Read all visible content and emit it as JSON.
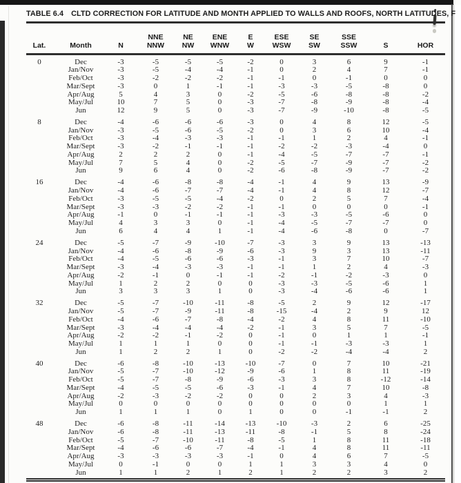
{
  "table": {
    "title_label": "TABLE 6.4",
    "title_text": "CLTD CORRECTION FOR LATITUDE AND MONTH APPLIED TO WALLS AND ROOFS, NORTH LATITUDES, F",
    "columns": [
      {
        "key": "lat",
        "line1": "",
        "line2": "Lat."
      },
      {
        "key": "month",
        "line1": "",
        "line2": "Month"
      },
      {
        "key": "n",
        "line1": "",
        "line2": "N"
      },
      {
        "key": "nne-nnw",
        "line1": "NNE",
        "line2": "NNW"
      },
      {
        "key": "ne-nw",
        "line1": "NE",
        "line2": "NW"
      },
      {
        "key": "ene-wnw",
        "line1": "ENE",
        "line2": "WNW"
      },
      {
        "key": "e-w",
        "line1": "E",
        "line2": "W"
      },
      {
        "key": "ese-wsw",
        "line1": "ESE",
        "line2": "WSW"
      },
      {
        "key": "se-sw",
        "line1": "SE",
        "line2": "SW"
      },
      {
        "key": "sse-ssw",
        "line1": "SSE",
        "line2": "SSW"
      },
      {
        "key": "s",
        "line1": "",
        "line2": "S"
      },
      {
        "key": "hor",
        "line1": "",
        "line2": "HOR"
      }
    ],
    "groups": [
      {
        "lat": "0",
        "rows": [
          {
            "month": "Dec",
            "values": [
              -3,
              -5,
              -5,
              -5,
              -2,
              0,
              3,
              6,
              9,
              -1
            ]
          },
          {
            "month": "Jan/Nov",
            "values": [
              -3,
              -5,
              -4,
              -4,
              -1,
              0,
              2,
              4,
              7,
              -1
            ]
          },
          {
            "month": "Feb/Oct",
            "values": [
              -3,
              -2,
              -2,
              -2,
              -1,
              -1,
              0,
              -1,
              0,
              0
            ]
          },
          {
            "month": "Mar/Sept",
            "values": [
              -3,
              0,
              1,
              -1,
              -1,
              -3,
              -3,
              -5,
              -8,
              0
            ]
          },
          {
            "month": "Apr/Aug",
            "values": [
              5,
              4,
              3,
              0,
              -2,
              -5,
              -6,
              -8,
              -8,
              -2
            ]
          },
          {
            "month": "May/Jul",
            "values": [
              10,
              7,
              5,
              0,
              -3,
              -7,
              -8,
              -9,
              -8,
              -4
            ]
          },
          {
            "month": "Jun",
            "values": [
              12,
              9,
              5,
              0,
              -3,
              -7,
              -9,
              -10,
              -8,
              -5
            ]
          }
        ]
      },
      {
        "lat": "8",
        "rows": [
          {
            "month": "Dec",
            "values": [
              -4,
              -6,
              -6,
              -6,
              -3,
              0,
              4,
              8,
              12,
              -5
            ]
          },
          {
            "month": "Jan/Nov",
            "values": [
              -3,
              -5,
              -6,
              -5,
              -2,
              0,
              3,
              6,
              10,
              -4
            ]
          },
          {
            "month": "Feb/Oct",
            "values": [
              -3,
              -4,
              -3,
              -3,
              -1,
              -1,
              1,
              2,
              4,
              -1
            ]
          },
          {
            "month": "Mar/Sept",
            "values": [
              -3,
              -2,
              -1,
              -1,
              -1,
              -2,
              -2,
              -3,
              -4,
              0
            ]
          },
          {
            "month": "Apr/Aug",
            "values": [
              2,
              2,
              2,
              0,
              -1,
              -4,
              -5,
              -7,
              -7,
              -1
            ]
          },
          {
            "month": "May/Jul",
            "values": [
              7,
              5,
              4,
              0,
              -2,
              -5,
              -7,
              -9,
              -7,
              -2
            ]
          },
          {
            "month": "Jun",
            "values": [
              9,
              6,
              4,
              0,
              -2,
              -6,
              -8,
              -9,
              -7,
              -2
            ]
          }
        ]
      },
      {
        "lat": "16",
        "rows": [
          {
            "month": "Dec",
            "values": [
              -4,
              -6,
              -8,
              -8,
              -4,
              -1,
              4,
              9,
              13,
              -9
            ]
          },
          {
            "month": "Jan/Nov",
            "values": [
              -4,
              -6,
              -7,
              -7,
              -4,
              -1,
              4,
              8,
              12,
              -7
            ]
          },
          {
            "month": "Feb/Oct",
            "values": [
              -3,
              -5,
              -5,
              -4,
              -2,
              0,
              2,
              5,
              7,
              -4
            ]
          },
          {
            "month": "Mar/Sept",
            "values": [
              -3,
              -3,
              -2,
              -2,
              -1,
              -1,
              0,
              0,
              0,
              -1
            ]
          },
          {
            "month": "Apr/Aug",
            "values": [
              -1,
              0,
              -1,
              -1,
              -1,
              -3,
              -3,
              -5,
              -6,
              0
            ]
          },
          {
            "month": "May/Jul",
            "values": [
              4,
              3,
              3,
              0,
              -1,
              -4,
              -5,
              -7,
              -7,
              0
            ]
          },
          {
            "month": "Jun",
            "values": [
              6,
              4,
              4,
              1,
              -1,
              -4,
              -6,
              -8,
              0,
              -7
            ]
          }
        ]
      },
      {
        "lat": "24",
        "rows": [
          {
            "month": "Dec",
            "values": [
              -5,
              -7,
              -9,
              -10,
              -7,
              -3,
              3,
              9,
              13,
              -13
            ]
          },
          {
            "month": "Jan/Nov",
            "values": [
              -4,
              -6,
              -8,
              -9,
              -6,
              -3,
              9,
              3,
              13,
              -11
            ]
          },
          {
            "month": "Feb/Oct",
            "values": [
              -4,
              -5,
              -6,
              -6,
              -3,
              -1,
              3,
              7,
              10,
              -7
            ]
          },
          {
            "month": "Mar/Sept",
            "values": [
              -3,
              -4,
              -3,
              -3,
              -1,
              -1,
              1,
              2,
              4,
              -3
            ]
          },
          {
            "month": "Apr/Aug",
            "values": [
              -2,
              -1,
              0,
              -1,
              -1,
              -2,
              -1,
              -2,
              -3,
              0
            ]
          },
          {
            "month": "May/Jul",
            "values": [
              1,
              2,
              2,
              0,
              0,
              -3,
              -3,
              -5,
              -6,
              1
            ]
          },
          {
            "month": "Jun",
            "values": [
              3,
              3,
              3,
              1,
              0,
              -3,
              -4,
              -6,
              -6,
              1
            ]
          }
        ]
      },
      {
        "lat": "32",
        "rows": [
          {
            "month": "Dec",
            "values": [
              -5,
              -7,
              -10,
              -11,
              -8,
              -5,
              2,
              9,
              12,
              -17
            ]
          },
          {
            "month": "Jan/Nov",
            "values": [
              -5,
              -7,
              -9,
              -11,
              -8,
              -15,
              -4,
              2,
              9,
              12
            ]
          },
          {
            "month": "Feb/Oct",
            "values": [
              -4,
              -6,
              -7,
              -8,
              -4,
              -2,
              4,
              8,
              11,
              -10
            ]
          },
          {
            "month": "Mar/Sept",
            "values": [
              -3,
              -4,
              -4,
              -4,
              -2,
              -1,
              3,
              5,
              7,
              -5
            ]
          },
          {
            "month": "Apr/Aug",
            "values": [
              -2,
              -2,
              -1,
              -2,
              0,
              -1,
              0,
              1,
              1,
              -1
            ]
          },
          {
            "month": "May/Jul",
            "values": [
              1,
              1,
              1,
              0,
              0,
              -1,
              -1,
              -3,
              -3,
              1
            ]
          },
          {
            "month": "Jun",
            "values": [
              1,
              2,
              2,
              1,
              0,
              -2,
              -2,
              -4,
              -4,
              2
            ]
          }
        ]
      },
      {
        "lat": "40",
        "rows": [
          {
            "month": "Dec",
            "values": [
              -6,
              -8,
              -10,
              -13,
              -10,
              -7,
              0,
              7,
              10,
              -21
            ]
          },
          {
            "month": "Jan/Nov",
            "values": [
              -5,
              -7,
              -10,
              -12,
              -9,
              -6,
              1,
              8,
              11,
              -19
            ]
          },
          {
            "month": "Feb/Oct",
            "values": [
              -5,
              -7,
              -8,
              -9,
              -6,
              -3,
              3,
              8,
              -12,
              -14
            ]
          },
          {
            "month": "Mar/Sept",
            "values": [
              -4,
              -5,
              -5,
              -6,
              -3,
              -1,
              4,
              7,
              10,
              -8
            ]
          },
          {
            "month": "Apr/Aug",
            "values": [
              -2,
              -3,
              -2,
              -2,
              0,
              0,
              2,
              3,
              4,
              -3
            ]
          },
          {
            "month": "May/Jul",
            "values": [
              0,
              0,
              0,
              0,
              0,
              0,
              0,
              0,
              1,
              1
            ]
          },
          {
            "month": "Jun",
            "values": [
              1,
              1,
              1,
              0,
              1,
              0,
              0,
              -1,
              -1,
              2
            ]
          }
        ]
      },
      {
        "lat": "48",
        "rows": [
          {
            "month": "Dec",
            "values": [
              -6,
              -8,
              -11,
              -14,
              -13,
              -10,
              -3,
              2,
              6,
              -25
            ]
          },
          {
            "month": "Jan/Nov",
            "values": [
              -6,
              -8,
              -11,
              -13,
              -11,
              -8,
              -1,
              5,
              8,
              -24
            ]
          },
          {
            "month": "Feb/Oct",
            "values": [
              -5,
              -7,
              -10,
              -11,
              -8,
              -5,
              1,
              8,
              11,
              -18
            ]
          },
          {
            "month": "Mar/Sept",
            "values": [
              -4,
              -6,
              -6,
              -7,
              -4,
              -1,
              4,
              8,
              11,
              -11
            ]
          },
          {
            "month": "Apr/Aug",
            "values": [
              -3,
              -3,
              -3,
              -3,
              -1,
              0,
              4,
              6,
              7,
              -5
            ]
          },
          {
            "month": "May/Jul",
            "values": [
              0,
              -1,
              0,
              0,
              1,
              1,
              3,
              3,
              4,
              0
            ]
          },
          {
            "month": "Jun",
            "values": [
              1,
              1,
              2,
              1,
              2,
              1,
              2,
              2,
              3,
              2
            ]
          }
        ]
      }
    ]
  },
  "colors": {
    "paper": "#fcfcfa",
    "text": "#1e1e1e",
    "rule": "#2e2e2e",
    "scan_edge": "#161616"
  }
}
